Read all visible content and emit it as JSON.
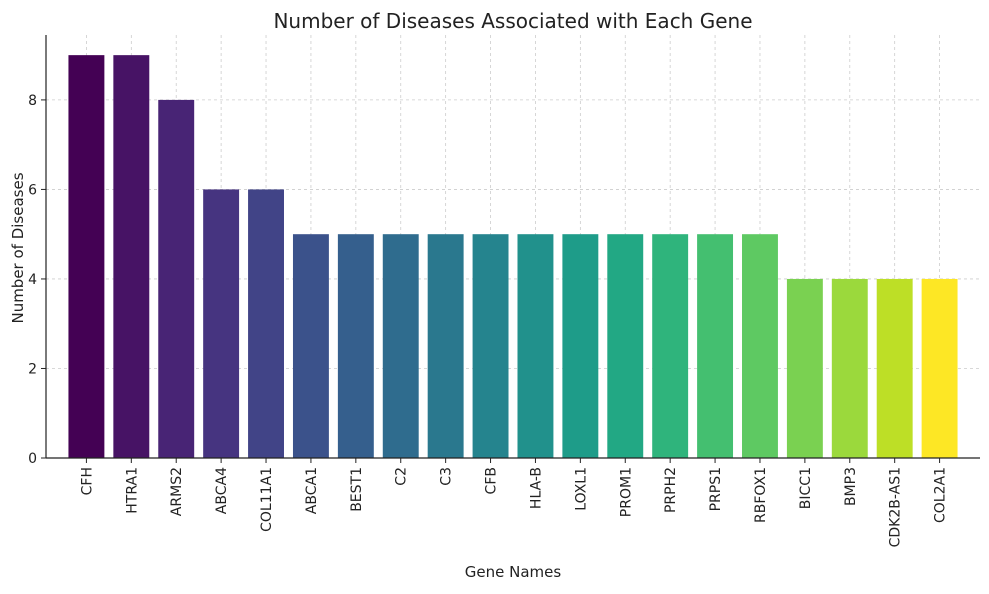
{
  "chart_data": {
    "type": "bar",
    "title": "Number of Diseases Associated with Each Gene",
    "xlabel": "Gene Names",
    "ylabel": "Number of Diseases",
    "categories": [
      "CFH",
      "HTRA1",
      "ARMS2",
      "ABCA4",
      "COL11A1",
      "ABCA1",
      "BEST1",
      "C2",
      "C3",
      "CFB",
      "HLA-B",
      "LOXL1",
      "PROM1",
      "PRPH2",
      "PRPS1",
      "RBFOX1",
      "BICC1",
      "BMP3",
      "CDK2B-AS1",
      "COL2A1"
    ],
    "values": [
      9,
      9,
      8,
      6,
      6,
      5,
      5,
      5,
      5,
      5,
      5,
      5,
      5,
      5,
      5,
      5,
      4,
      4,
      4,
      4
    ],
    "ylim": [
      0,
      9.45
    ],
    "yticks": [
      0,
      2,
      4,
      6,
      8
    ],
    "grid": true,
    "colormap": "viridis",
    "bar_colors": [
      "#440154",
      "#471365",
      "#482475",
      "#463480",
      "#414487",
      "#3b528b",
      "#355f8d",
      "#2f6c8e",
      "#2a788e",
      "#25848e",
      "#21918c",
      "#1e9c89",
      "#22a884",
      "#2fb47c",
      "#44bf70",
      "#5ec962",
      "#7ad151",
      "#9bd93c",
      "#bddf26",
      "#fde725"
    ]
  }
}
